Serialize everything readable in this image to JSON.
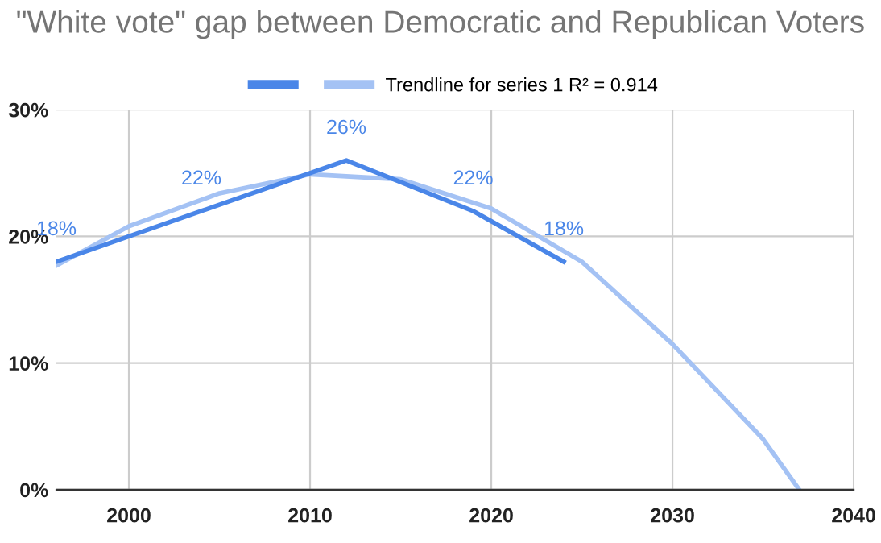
{
  "chart_data": {
    "type": "line",
    "title": "\"White vote\" gap between Democratic and Republican Voters",
    "series": [
      {
        "color": "#4a86e8",
        "x": [
          1996,
          2004,
          2012,
          2019,
          2024
        ],
        "values": [
          18,
          22,
          26,
          22,
          18
        ],
        "value_labels": [
          "18%",
          "22%",
          "26%",
          "22%",
          "18%"
        ]
      },
      {
        "name": "Trendline for series 1 R² = 0.914",
        "color": "#a4c2f4",
        "x": [
          1996,
          2000,
          2005,
          2010,
          2015,
          2020,
          2025,
          2030,
          2035,
          2037
        ],
        "values": [
          17.7,
          20.8,
          23.4,
          24.9,
          24.5,
          22.2,
          18,
          11.5,
          4,
          0
        ]
      }
    ],
    "xlim": [
      1996,
      2040
    ],
    "xticks": [
      2000,
      2010,
      2020,
      2030,
      2040
    ],
    "ylim": [
      0,
      30
    ],
    "yticks": [
      {
        "value": 0,
        "label": "0%"
      },
      {
        "value": 10,
        "label": "10%"
      },
      {
        "value": 20,
        "label": "20%"
      },
      {
        "value": 30,
        "label": "30%"
      }
    ],
    "grid": true,
    "legend": "top",
    "marker": "none",
    "line_style": "solid"
  }
}
